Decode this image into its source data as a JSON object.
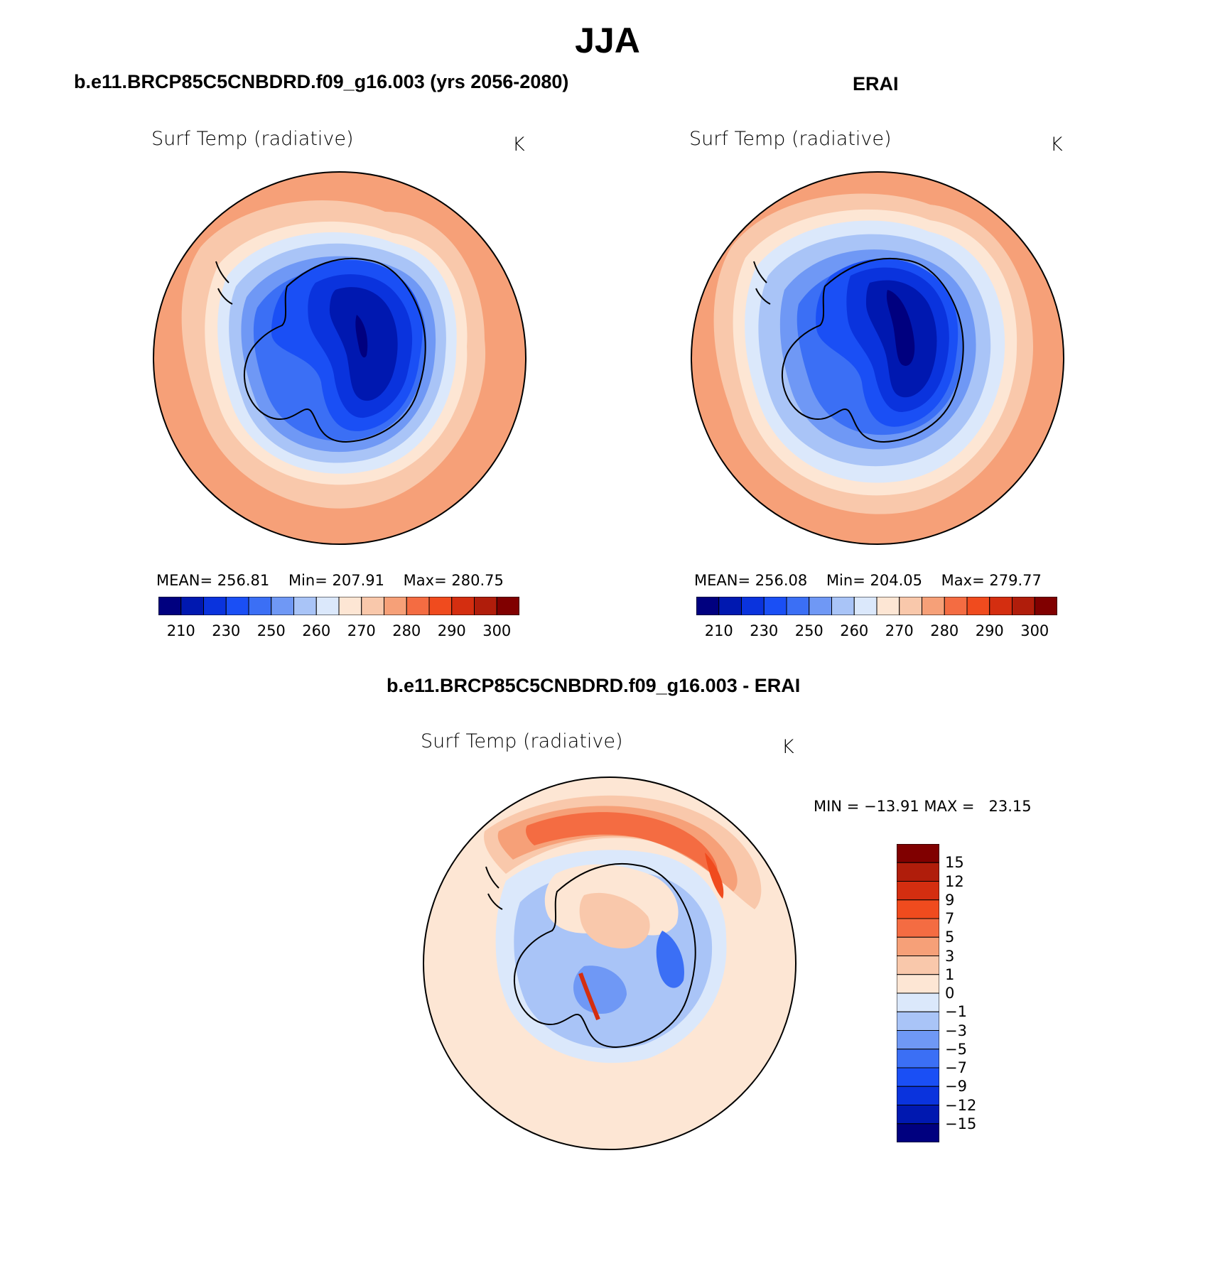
{
  "figure": {
    "title": "JJA",
    "panels": [
      {
        "title": "b.e11.BRCP85C5CNBDRD.f09_g16.003 (yrs 2056-2080)",
        "variable_label": "Surf Temp (radiative)",
        "units": "K",
        "mean_label": "MEAN=",
        "mean": "256.81",
        "min_label": "Min=",
        "min": "207.91",
        "max_label": "Max=",
        "max": "280.75"
      },
      {
        "title": "ERAI",
        "variable_label": "Surf Temp (radiative)",
        "units": "K",
        "mean_label": "MEAN=",
        "mean": "256.08",
        "min_label": "Min=",
        "min": "204.05",
        "max_label": "Max=",
        "max": "279.77"
      }
    ],
    "difference": {
      "title": "b.e11.BRCP85C5CNBDRD.f09_g16.003 - ERAI",
      "variable_label": "Surf Temp (radiative)",
      "units": "K",
      "minmax_text": "MIN = −13.91 MAX =   23.15"
    }
  },
  "colorbars": {
    "absolute": {
      "colors": [
        "#00007f",
        "#0018b0",
        "#0a33dd",
        "#1a4ff5",
        "#3b6ff5",
        "#6f98f5",
        "#a9c4f7",
        "#dbe8fb",
        "#fde6d4",
        "#f9c8ab",
        "#f6a078",
        "#f46c42",
        "#f04b1e",
        "#d42e10",
        "#b01d0b",
        "#800000"
      ],
      "tick_labels": [
        "210",
        "230",
        "250",
        "260",
        "270",
        "280",
        "290",
        "300"
      ]
    },
    "difference": {
      "colors": [
        "#00007f",
        "#0018b0",
        "#0a33dd",
        "#1a4ff5",
        "#3b6ff5",
        "#6f98f5",
        "#a9c4f7",
        "#dbe8fb",
        "#fde6d4",
        "#f9c8ab",
        "#f6a078",
        "#f46c42",
        "#f04b1e",
        "#d42e10",
        "#b01d0b",
        "#800000"
      ],
      "tick_labels": [
        "15",
        "12",
        "9",
        "7",
        "5",
        "3",
        "1",
        "0",
        "−1",
        "−3",
        "−5",
        "−7",
        "−9",
        "−12",
        "−15"
      ]
    }
  }
}
